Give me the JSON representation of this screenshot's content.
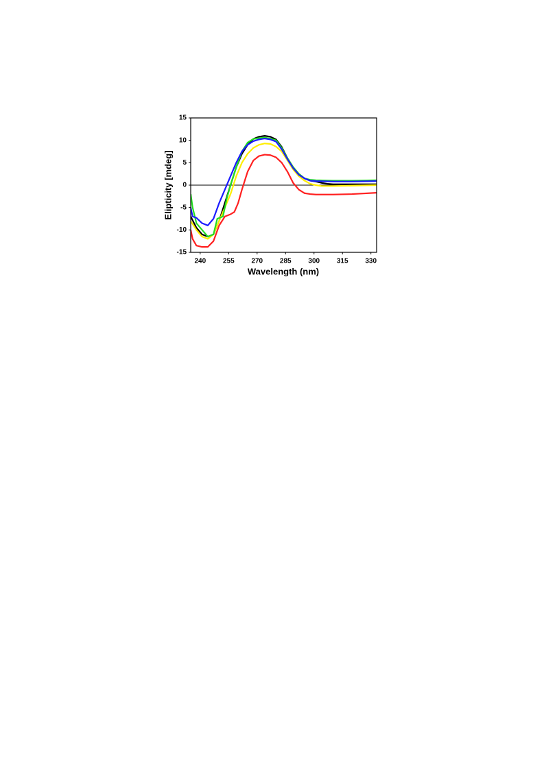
{
  "chart_data": {
    "type": "line",
    "x_label": "Wavelength (nm)",
    "y_label": "Elipticity [mdeg]",
    "xlim": [
      235,
      333
    ],
    "ylim": [
      -15,
      15
    ],
    "xticks": [
      240,
      255,
      270,
      285,
      300,
      315,
      330
    ],
    "yticks": [
      -15,
      -10,
      -5,
      0,
      5,
      10,
      15
    ],
    "series": [
      {
        "color": "#000000",
        "x": [
          235,
          238,
          241,
          244,
          247,
          250,
          253,
          256,
          259,
          262,
          265,
          268,
          271,
          274,
          277,
          280,
          283,
          286,
          289,
          292,
          295,
          298,
          301,
          304,
          307,
          310,
          320,
          333
        ],
        "values": [
          -7,
          -9.5,
          -11,
          -11.5,
          -11,
          -8,
          -4,
          0,
          4,
          7,
          9,
          10.3,
          10.8,
          11,
          10.8,
          10.2,
          8.5,
          6,
          4,
          2.5,
          1.5,
          1,
          0.8,
          0.5,
          0.3,
          0.2,
          0.2,
          0.2
        ]
      },
      {
        "color": "#ff2020",
        "x": [
          235,
          236,
          238,
          241,
          244,
          247,
          250,
          253,
          256,
          258,
          260,
          262,
          265,
          268,
          271,
          274,
          277,
          280,
          283,
          286,
          289,
          292,
          295,
          298,
          301,
          310,
          320,
          333
        ],
        "values": [
          -10,
          -12,
          -13.5,
          -13.8,
          -13.8,
          -12.5,
          -9,
          -7,
          -6.5,
          -6,
          -4,
          -1,
          3,
          5.5,
          6.5,
          6.8,
          6.7,
          6.2,
          5,
          3,
          0.5,
          -1,
          -1.8,
          -2,
          -2.1,
          -2.1,
          -2,
          -1.7
        ]
      },
      {
        "color": "#ffee00",
        "x": [
          235,
          238,
          241,
          244,
          247,
          250,
          253,
          256,
          259,
          262,
          265,
          268,
          271,
          274,
          277,
          280,
          283,
          286,
          289,
          292,
          295,
          298,
          301,
          304,
          310,
          333
        ],
        "values": [
          -8,
          -10,
          -11.5,
          -12,
          -11,
          -8,
          -5,
          -2,
          2,
          5,
          7,
          8.3,
          9,
          9.3,
          9.2,
          8.6,
          7.5,
          5.5,
          3.5,
          2,
          1,
          0.3,
          0,
          -0.2,
          -0.2,
          0
        ]
      },
      {
        "color": "#22dd22",
        "x": [
          235,
          236,
          238,
          241,
          244,
          247,
          249,
          252,
          254,
          256,
          259,
          262,
          265,
          268,
          271,
          274,
          277,
          280,
          283,
          286,
          289,
          292,
          295,
          298,
          301,
          310,
          320,
          333
        ],
        "values": [
          -2,
          -5,
          -8.5,
          -10,
          -11.5,
          -11,
          -7.5,
          -7,
          -3,
          0,
          4,
          7.5,
          9.5,
          10.3,
          10.5,
          10.6,
          10.4,
          10,
          8.3,
          6,
          4,
          2.5,
          1.5,
          1.2,
          1.1,
          1,
          1,
          1.1
        ]
      },
      {
        "color": "#1a1aff",
        "x": [
          235,
          236,
          238,
          241,
          244,
          247,
          250,
          253,
          256,
          259,
          262,
          265,
          268,
          271,
          274,
          277,
          280,
          283,
          286,
          289,
          292,
          295,
          298,
          301,
          310,
          320,
          333
        ],
        "values": [
          -5,
          -7,
          -7.3,
          -8.5,
          -9,
          -7.5,
          -4,
          -1,
          2,
          5,
          7.5,
          9,
          9.8,
          10.2,
          10.4,
          10.2,
          9.7,
          8,
          5.8,
          3.8,
          2.3,
          1.5,
          1,
          0.9,
          0.8,
          0.8,
          0.9
        ]
      }
    ]
  }
}
